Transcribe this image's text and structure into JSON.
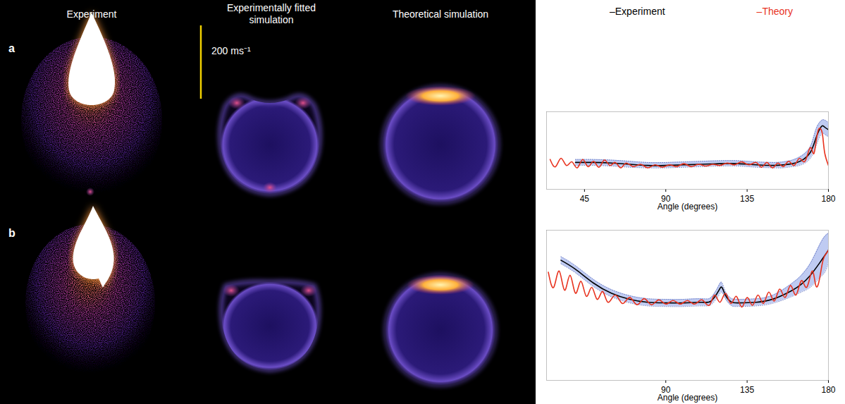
{
  "figure": {
    "column_titles": [
      "Experiment",
      "Experimentally fitted simulation",
      "Theoretical simulation"
    ],
    "panel_labels": [
      "a",
      "b"
    ],
    "scale_bar_label": "200 ms⁻¹"
  },
  "chart_data": [
    {
      "type": "line",
      "panel": "a",
      "xlabel": "Angle (degrees)",
      "xlim": [
        24,
        180
      ],
      "xticks": [
        45,
        90,
        135,
        180
      ],
      "ylim": [
        0,
        1.3
      ],
      "tick_labels": "x",
      "grid": false,
      "legend": "top",
      "series": [
        {
          "name": "–Experiment",
          "color": "#000000",
          "x": [
            40,
            50,
            60,
            70,
            80,
            90,
            100,
            110,
            120,
            130,
            140,
            150,
            155,
            160,
            165,
            170,
            173,
            176,
            178,
            180
          ],
          "values": [
            0.45,
            0.45,
            0.44,
            0.42,
            0.4,
            0.4,
            0.41,
            0.42,
            0.43,
            0.43,
            0.41,
            0.4,
            0.41,
            0.43,
            0.48,
            0.62,
            0.85,
            1.05,
            1.04,
            1.0
          ],
          "band_lower": [
            0.4,
            0.4,
            0.39,
            0.37,
            0.36,
            0.36,
            0.37,
            0.38,
            0.39,
            0.39,
            0.37,
            0.36,
            0.36,
            0.38,
            0.41,
            0.52,
            0.72,
            0.92,
            0.92,
            0.88
          ],
          "band_upper": [
            0.5,
            0.5,
            0.49,
            0.47,
            0.45,
            0.45,
            0.46,
            0.47,
            0.48,
            0.48,
            0.46,
            0.45,
            0.46,
            0.49,
            0.56,
            0.72,
            1.0,
            1.15,
            1.16,
            1.12
          ]
        },
        {
          "name": "–Theory",
          "color": "#e8321e",
          "x": [
            26,
            29,
            32,
            35,
            38,
            41,
            44,
            47,
            50,
            53,
            56,
            59,
            62,
            65,
            68,
            72,
            76,
            80,
            84,
            88,
            92,
            96,
            100,
            104,
            108,
            112,
            116,
            120,
            124,
            128,
            132,
            136,
            140,
            143,
            146,
            149,
            152,
            155,
            158,
            161,
            164,
            167,
            170,
            172,
            174,
            176,
            177,
            178,
            180
          ],
          "values": [
            0.5,
            0.38,
            0.52,
            0.4,
            0.46,
            0.36,
            0.5,
            0.38,
            0.47,
            0.37,
            0.49,
            0.4,
            0.45,
            0.36,
            0.44,
            0.38,
            0.42,
            0.36,
            0.41,
            0.37,
            0.41,
            0.38,
            0.43,
            0.38,
            0.42,
            0.39,
            0.42,
            0.4,
            0.44,
            0.41,
            0.46,
            0.41,
            0.45,
            0.37,
            0.45,
            0.36,
            0.44,
            0.38,
            0.47,
            0.4,
            0.52,
            0.47,
            0.7,
            0.6,
            0.95,
            1.0,
            0.85,
            0.6,
            0.4
          ]
        }
      ]
    },
    {
      "type": "line",
      "panel": "b",
      "xlabel": "Angle (degrees)",
      "xlim": [
        24,
        180
      ],
      "xticks": [
        90,
        135,
        180
      ],
      "ylim": [
        0,
        2.5
      ],
      "tick_labels": "x",
      "grid": false,
      "series": [
        {
          "name": "–Experiment",
          "color": "#000000",
          "x": [
            32,
            40,
            50,
            60,
            70,
            80,
            90,
            100,
            110,
            115,
            119,
            121,
            123,
            126,
            130,
            140,
            150,
            160,
            165,
            170,
            175,
            178,
            180
          ],
          "values": [
            2.0,
            1.85,
            1.62,
            1.45,
            1.35,
            1.3,
            1.29,
            1.29,
            1.3,
            1.32,
            1.48,
            1.55,
            1.42,
            1.31,
            1.29,
            1.3,
            1.36,
            1.5,
            1.6,
            1.75,
            1.95,
            2.08,
            2.17
          ],
          "band_lower": [
            1.94,
            1.79,
            1.56,
            1.39,
            1.29,
            1.24,
            1.23,
            1.23,
            1.24,
            1.26,
            1.4,
            1.47,
            1.36,
            1.25,
            1.23,
            1.24,
            1.29,
            1.4,
            1.47,
            1.55,
            1.7,
            1.8,
            1.95
          ],
          "band_upper": [
            2.06,
            1.91,
            1.68,
            1.51,
            1.41,
            1.36,
            1.35,
            1.35,
            1.36,
            1.38,
            1.56,
            1.63,
            1.48,
            1.37,
            1.35,
            1.36,
            1.43,
            1.62,
            1.75,
            1.95,
            2.25,
            2.4,
            2.45
          ]
        },
        {
          "name": "–Theory",
          "color": "#e8321e",
          "x": [
            25,
            28,
            31,
            34,
            37,
            40,
            43,
            46,
            49,
            52,
            55,
            58,
            62,
            66,
            70,
            74,
            78,
            82,
            86,
            90,
            94,
            98,
            102,
            106,
            110,
            114,
            117,
            120,
            123,
            126,
            129,
            132,
            135,
            138,
            141,
            144,
            147,
            150,
            153,
            156,
            159,
            162,
            165,
            168,
            171,
            173,
            175,
            177,
            179,
            180
          ],
          "values": [
            1.8,
            1.55,
            1.82,
            1.5,
            1.75,
            1.45,
            1.65,
            1.4,
            1.55,
            1.35,
            1.48,
            1.3,
            1.42,
            1.28,
            1.38,
            1.26,
            1.36,
            1.26,
            1.34,
            1.27,
            1.33,
            1.27,
            1.33,
            1.27,
            1.34,
            1.25,
            1.42,
            1.3,
            1.45,
            1.28,
            1.4,
            1.22,
            1.38,
            1.25,
            1.42,
            1.28,
            1.47,
            1.32,
            1.52,
            1.38,
            1.58,
            1.42,
            1.66,
            1.55,
            1.82,
            1.58,
            1.68,
            2.0,
            2.12,
            2.17
          ]
        }
      ]
    }
  ]
}
